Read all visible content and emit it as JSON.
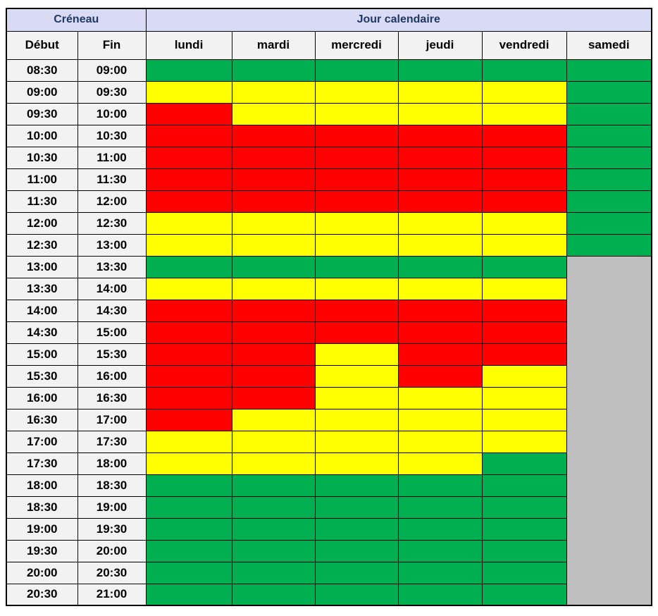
{
  "chart_data": {
    "type": "heatmap",
    "group_headers": {
      "creneau": "Créneau",
      "jour_calendaire": "Jour calendaire"
    },
    "time_columns": {
      "debut": "Début",
      "fin": "Fin"
    },
    "days": [
      "lundi",
      "mardi",
      "mercredi",
      "jeudi",
      "vendredi",
      "samedi"
    ],
    "rows": [
      {
        "debut": "08:30",
        "fin": "09:00",
        "cells": [
          "green",
          "green",
          "green",
          "green",
          "green",
          "green"
        ]
      },
      {
        "debut": "09:00",
        "fin": "09:30",
        "cells": [
          "yellow",
          "yellow",
          "yellow",
          "yellow",
          "yellow",
          "green"
        ]
      },
      {
        "debut": "09:30",
        "fin": "10:00",
        "cells": [
          "red",
          "yellow",
          "yellow",
          "yellow",
          "yellow",
          "green"
        ]
      },
      {
        "debut": "10:00",
        "fin": "10:30",
        "cells": [
          "red",
          "red",
          "red",
          "red",
          "red",
          "green"
        ]
      },
      {
        "debut": "10:30",
        "fin": "11:00",
        "cells": [
          "red",
          "red",
          "red",
          "red",
          "red",
          "green"
        ]
      },
      {
        "debut": "11:00",
        "fin": "11:30",
        "cells": [
          "red",
          "red",
          "red",
          "red",
          "red",
          "green"
        ]
      },
      {
        "debut": "11:30",
        "fin": "12:00",
        "cells": [
          "red",
          "red",
          "red",
          "red",
          "red",
          "green"
        ]
      },
      {
        "debut": "12:00",
        "fin": "12:30",
        "cells": [
          "yellow",
          "yellow",
          "yellow",
          "yellow",
          "yellow",
          "green"
        ]
      },
      {
        "debut": "12:30",
        "fin": "13:00",
        "cells": [
          "yellow",
          "yellow",
          "yellow",
          "yellow",
          "yellow",
          "green"
        ]
      },
      {
        "debut": "13:00",
        "fin": "13:30",
        "cells": [
          "green",
          "green",
          "green",
          "green",
          "green",
          "gray"
        ]
      },
      {
        "debut": "13:30",
        "fin": "14:00",
        "cells": [
          "yellow",
          "yellow",
          "yellow",
          "yellow",
          "yellow",
          "gray"
        ]
      },
      {
        "debut": "14:00",
        "fin": "14:30",
        "cells": [
          "red",
          "red",
          "red",
          "red",
          "red",
          "gray"
        ]
      },
      {
        "debut": "14:30",
        "fin": "15:00",
        "cells": [
          "red",
          "red",
          "red",
          "red",
          "red",
          "gray"
        ]
      },
      {
        "debut": "15:00",
        "fin": "15:30",
        "cells": [
          "red",
          "red",
          "yellow",
          "red",
          "red",
          "gray"
        ]
      },
      {
        "debut": "15:30",
        "fin": "16:00",
        "cells": [
          "red",
          "red",
          "yellow",
          "red",
          "yellow",
          "gray"
        ]
      },
      {
        "debut": "16:00",
        "fin": "16:30",
        "cells": [
          "red",
          "red",
          "yellow",
          "yellow",
          "yellow",
          "gray"
        ]
      },
      {
        "debut": "16:30",
        "fin": "17:00",
        "cells": [
          "red",
          "yellow",
          "yellow",
          "yellow",
          "yellow",
          "gray"
        ]
      },
      {
        "debut": "17:00",
        "fin": "17:30",
        "cells": [
          "yellow",
          "yellow",
          "yellow",
          "yellow",
          "yellow",
          "gray"
        ]
      },
      {
        "debut": "17:30",
        "fin": "18:00",
        "cells": [
          "yellow",
          "yellow",
          "yellow",
          "yellow",
          "green",
          "gray"
        ]
      },
      {
        "debut": "18:00",
        "fin": "18:30",
        "cells": [
          "green",
          "green",
          "green",
          "green",
          "green",
          "gray"
        ]
      },
      {
        "debut": "18:30",
        "fin": "19:00",
        "cells": [
          "green",
          "green",
          "green",
          "green",
          "green",
          "gray"
        ]
      },
      {
        "debut": "19:00",
        "fin": "19:30",
        "cells": [
          "green",
          "green",
          "green",
          "green",
          "green",
          "gray"
        ]
      },
      {
        "debut": "19:30",
        "fin": "20:00",
        "cells": [
          "green",
          "green",
          "green",
          "green",
          "green",
          "gray"
        ]
      },
      {
        "debut": "20:00",
        "fin": "20:30",
        "cells": [
          "green",
          "green",
          "green",
          "green",
          "green",
          "gray"
        ]
      },
      {
        "debut": "20:30",
        "fin": "21:00",
        "cells": [
          "green",
          "green",
          "green",
          "green",
          "green",
          "gray"
        ]
      }
    ],
    "status_colors": {
      "green": "#00B050",
      "yellow": "#FFFF00",
      "red": "#FF0000",
      "gray": "#BFBFBF"
    }
  },
  "colors": {
    "header_bg": "#D9DAF3",
    "header_text": "#1F3864",
    "subheader_bg": "#F2F2F2",
    "time_bg": "#F2F2F2",
    "border": "#000000"
  }
}
